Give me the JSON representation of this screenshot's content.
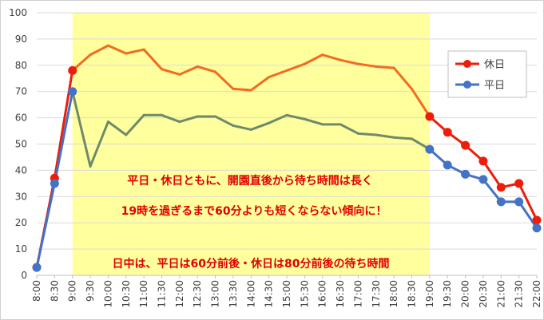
{
  "chart_data": {
    "type": "line",
    "categories": [
      "8:00",
      "8:30",
      "9:00",
      "9:30",
      "10:00",
      "10:30",
      "11:00",
      "11:30",
      "12:00",
      "12:30",
      "13:00",
      "13:30",
      "14:00",
      "14:30",
      "15:00",
      "15:30",
      "16:00",
      "16:30",
      "17:00",
      "17:30",
      "18:00",
      "18:30",
      "19:00",
      "19:30",
      "20:00",
      "20:30",
      "21:00",
      "21:30",
      "22:00"
    ],
    "series": [
      {
        "name": "休日",
        "values": [
          3,
          37,
          78,
          84,
          87.5,
          84.5,
          86,
          78.5,
          76.5,
          79.5,
          77.5,
          71,
          70.5,
          75.5,
          78,
          80.5,
          84,
          82,
          80.5,
          79.5,
          79,
          71,
          60.5,
          54.5,
          49.5,
          43.5,
          33.5,
          35,
          21
        ]
      },
      {
        "name": "平日",
        "values": [
          3,
          35,
          70,
          41.5,
          58.5,
          53.5,
          61,
          61,
          58.5,
          60.5,
          60.5,
          57,
          55.5,
          58,
          61,
          59.5,
          57.5,
          57.5,
          54,
          53.5,
          52.5,
          52,
          48,
          42,
          38.5,
          36.5,
          28,
          28,
          18
        ]
      }
    ],
    "ylim": [
      0,
      100
    ],
    "yticks": [
      0,
      10,
      20,
      30,
      40,
      50,
      60,
      70,
      80,
      90,
      100
    ],
    "highlight_range": [
      "9:00",
      "19:00"
    ],
    "grid": true,
    "legend_position": "right",
    "annotations": [
      "平日・休日ともに、開園直後から待ち時間は長く",
      "19時を過ぎるまで60分よりも短くならない傾向に！",
      "日中は、平日は60分前後・休日は80分前後の待ち時間"
    ],
    "colors": {
      "holiday": "#ee1c0a",
      "holiday_in_range": "#f36b21",
      "weekday": "#4472c4",
      "weekday_in_range": "#6f8a6a",
      "highlight_fill": "#ffff9e",
      "annotation": "#e00000"
    }
  }
}
